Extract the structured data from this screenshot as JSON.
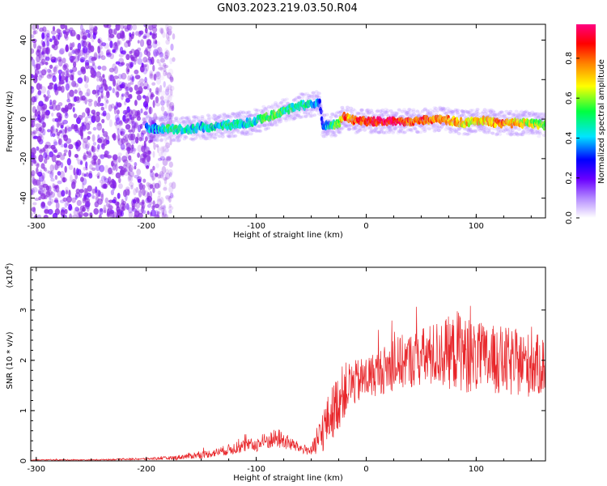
{
  "title": "GN03.2023.219.03.50.R04",
  "colors": {
    "snr_line": "#e8262a",
    "axes": "#000000",
    "background": "#ffffff",
    "noise": "#8a2be2",
    "colormap": [
      "#ffffff",
      "#9b30ff",
      "#0000ff",
      "#00e5ff",
      "#00ff00",
      "#ffff00",
      "#ff8000",
      "#ff0000",
      "#ff0080"
    ]
  },
  "chart_data": [
    {
      "type": "heatmap",
      "panel": "spectrogram",
      "xlabel": "Height of straight line (km)",
      "ylabel": "Frequency (Hz)",
      "xlim": [
        -305,
        163
      ],
      "ylim": [
        -50,
        48
      ],
      "xticks": [
        -300,
        -200,
        -100,
        0,
        100
      ],
      "yticks": [
        40,
        20,
        0,
        -20,
        -40
      ],
      "grid": false,
      "noise_region_x": [
        -305,
        -175
      ],
      "ridge": {
        "x": [
          -200,
          -190,
          -180,
          -170,
          -160,
          -150,
          -140,
          -130,
          -120,
          -110,
          -100,
          -90,
          -80,
          -70,
          -60,
          -50,
          -45,
          -42,
          -40,
          -35,
          -30,
          -25,
          -20,
          -15,
          -10,
          0,
          10,
          20,
          30,
          40,
          50,
          60,
          70,
          80,
          90,
          100,
          110,
          120,
          130,
          140,
          150,
          160
        ],
        "y": [
          -4,
          -5,
          -5,
          -5,
          -5,
          -4,
          -4,
          -3,
          -3,
          -2,
          -1,
          1,
          3,
          5,
          7,
          7,
          8,
          8,
          -3,
          -3,
          -3,
          -2,
          1,
          0,
          -1,
          -1,
          -1,
          -1,
          -1,
          -1,
          -1,
          0,
          0,
          -1,
          -2,
          -1,
          -1,
          -2,
          -2,
          -2,
          -2,
          -3
        ],
        "amplitude": [
          0.35,
          0.4,
          0.5,
          0.45,
          0.45,
          0.4,
          0.45,
          0.45,
          0.5,
          0.45,
          0.45,
          0.55,
          0.55,
          0.5,
          0.5,
          0.45,
          0.35,
          0.3,
          0.25,
          0.4,
          0.55,
          0.6,
          0.85,
          0.75,
          0.85,
          0.9,
          0.9,
          0.95,
          0.9,
          0.85,
          0.85,
          0.8,
          0.8,
          0.75,
          0.7,
          0.7,
          0.7,
          0.8,
          0.75,
          0.7,
          0.65,
          0.6
        ]
      }
    },
    {
      "type": "colorbar",
      "label": "Normalized spectral amplitude",
      "range": [
        0,
        0.97
      ],
      "ticks": [
        "0.0",
        "0.2",
        "0.4",
        "0.6",
        "0.8"
      ]
    },
    {
      "type": "line",
      "panel": "snr",
      "xlabel": "Height of straight line (km)",
      "ylabel": "SNR (10 * v/v)",
      "multiplier": "(x10",
      "multiplier_exp": "4",
      "xlim": [
        -305,
        163
      ],
      "ylim": [
        0,
        3.85
      ],
      "xticks": [
        -300,
        -200,
        -100,
        0,
        100
      ],
      "yticks": [
        0,
        1,
        2,
        3
      ],
      "grid": false,
      "series": [
        {
          "x": [
            -305,
            -250,
            -200,
            -175,
            -160,
            -150,
            -140,
            -130,
            -120,
            -110,
            -100,
            -90,
            -80,
            -70,
            -60,
            -50,
            -45,
            -40,
            -35,
            -30,
            -25,
            -20,
            -15,
            -10,
            -5,
            0,
            10,
            20,
            30,
            40,
            50,
            60,
            70,
            80,
            85,
            90,
            100,
            110,
            120,
            130,
            140,
            150,
            160
          ],
          "y": [
            0.02,
            0.02,
            0.04,
            0.06,
            0.1,
            0.12,
            0.15,
            0.2,
            0.25,
            0.3,
            0.32,
            0.4,
            0.45,
            0.35,
            0.25,
            0.2,
            0.3,
            0.6,
            0.8,
            1.0,
            1.2,
            1.4,
            1.5,
            1.55,
            1.6,
            1.65,
            1.75,
            1.85,
            1.95,
            2.0,
            2.05,
            2.1,
            2.15,
            2.15,
            2.25,
            2.1,
            2.05,
            2.0,
            2.0,
            1.95,
            1.95,
            1.9,
            1.9
          ],
          "noise_amplitude": [
            0.01,
            0.01,
            0.02,
            0.04,
            0.06,
            0.07,
            0.08,
            0.1,
            0.12,
            0.13,
            0.14,
            0.18,
            0.2,
            0.15,
            0.1,
            0.1,
            0.3,
            0.45,
            0.5,
            0.55,
            0.6,
            0.55,
            0.5,
            0.45,
            0.45,
            0.45,
            0.45,
            0.5,
            0.55,
            0.55,
            0.6,
            0.65,
            0.7,
            0.75,
            0.85,
            0.75,
            0.7,
            0.7,
            0.7,
            0.7,
            0.65,
            0.65,
            0.6
          ]
        }
      ]
    }
  ]
}
